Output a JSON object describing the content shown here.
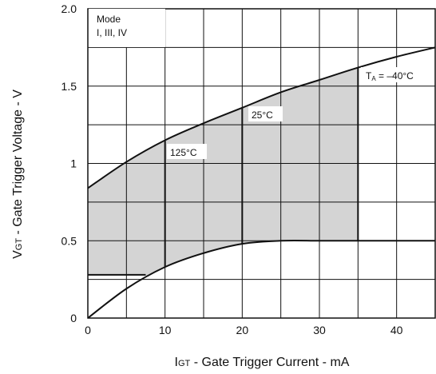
{
  "chart_data": {
    "type": "area",
    "x_range": [
      0,
      45
    ],
    "y_range": [
      0,
      2.0
    ],
    "grid": true,
    "x_ticks": [
      0,
      5,
      10,
      15,
      20,
      25,
      30,
      35,
      40,
      45
    ],
    "y_ticks": [
      0,
      0.25,
      0.5,
      0.75,
      1.0,
      1.25,
      1.5,
      1.75,
      2.0
    ],
    "x_tick_labels": [
      {
        "value": 0,
        "label": "0"
      },
      {
        "value": 10,
        "label": "10"
      },
      {
        "value": 20,
        "label": "20"
      },
      {
        "value": 30,
        "label": "30"
      },
      {
        "value": 40,
        "label": "40"
      }
    ],
    "y_tick_labels": [
      {
        "value": 0,
        "label": "0"
      },
      {
        "value": 0.5,
        "label": "0.5"
      },
      {
        "value": 1.0,
        "label": "1"
      },
      {
        "value": 1.5,
        "label": "1.5"
      },
      {
        "value": 2.0,
        "label": "2.0"
      }
    ],
    "xlabel_main": "I",
    "xlabel_sub": "GT",
    "xlabel_rest": " - Gate Trigger Current - mA",
    "ylabel_main": "V",
    "ylabel_sub": "GT",
    "ylabel_rest": " - Gate Trigger Voltage - V",
    "mode_label_1": "Mode",
    "mode_label_2": "I, III, IV",
    "upper_boundary": {
      "x": [
        0,
        5,
        10,
        15,
        20,
        25,
        30,
        35,
        40,
        45
      ],
      "y": [
        0.84,
        1.01,
        1.15,
        1.26,
        1.36,
        1.46,
        1.54,
        1.62,
        1.69,
        1.75
      ]
    },
    "lower_boundary": {
      "x": [
        0,
        5,
        10,
        15,
        20,
        25,
        30,
        35,
        40,
        45
      ],
      "y": [
        0.0,
        0.19,
        0.33,
        0.42,
        0.48,
        0.5,
        0.5,
        0.5,
        0.5,
        0.5
      ]
    },
    "flat_segment": {
      "x": [
        0,
        7.5
      ],
      "y": 0.28
    },
    "shaded_region": {
      "x_from": 0,
      "x_to": 35,
      "fill": "#d4d4d4"
    },
    "temperature_lines": [
      {
        "label": "125°C",
        "x": 10
      },
      {
        "label": "25°C",
        "x": 20
      },
      {
        "label_main": "T",
        "label_sub": "A",
        "label_rest": " = –40°C",
        "x": 35
      }
    ],
    "colors": {
      "fill": "#d4d4d4",
      "line": "#111111",
      "grid": "#111111"
    }
  }
}
